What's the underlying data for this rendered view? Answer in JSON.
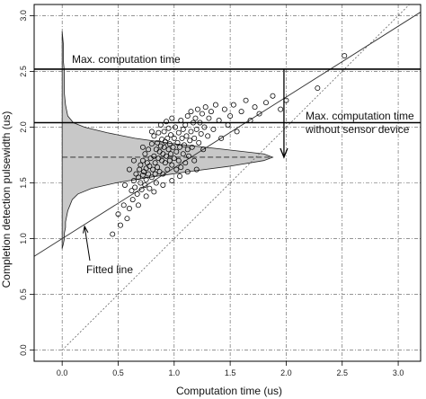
{
  "chart_data": {
    "type": "scatter",
    "xlabel": "Computation time (us)",
    "ylabel": "Completion detection pulsewidth (us)",
    "xlim": [
      -0.25,
      3.2
    ],
    "ylim": [
      -0.1,
      3.1
    ],
    "x_ticks": [
      "0.0",
      "0.5",
      "1.0",
      "1.5",
      "2.0",
      "2.5",
      "3.0"
    ],
    "y_ticks": [
      "0.0",
      "0.5",
      "1.0",
      "1.5",
      "2.0",
      "2.5",
      "3.0"
    ],
    "grid": true,
    "grid_style": "dash-dot",
    "fitted_line": {
      "intercept": 1.0,
      "slope": 0.635
    },
    "identity_line": {
      "intercept": 0.0,
      "slope": 1.0
    },
    "horizontal_lines": [
      {
        "y": 2.52,
        "label": "Max. computation time"
      },
      {
        "y": 2.04,
        "label_line1": "Max. computation time",
        "label_line2": "without sensor device"
      }
    ],
    "mean_line_y": 1.73,
    "arrow": {
      "x": 1.98,
      "y_from": 2.52,
      "y_to": 1.73
    },
    "fitted_line_label": "Fitted line",
    "histogram_density": [
      [
        0.91,
        0.0
      ],
      [
        0.95,
        0.01
      ],
      [
        1.0,
        0.02
      ],
      [
        1.05,
        0.02
      ],
      [
        1.1,
        0.03
      ],
      [
        1.15,
        0.03
      ],
      [
        1.2,
        0.04
      ],
      [
        1.25,
        0.05
      ],
      [
        1.3,
        0.07
      ],
      [
        1.35,
        0.09
      ],
      [
        1.4,
        0.14
      ],
      [
        1.45,
        0.26
      ],
      [
        1.5,
        0.48
      ],
      [
        1.55,
        0.78
      ],
      [
        1.6,
        1.12
      ],
      [
        1.65,
        1.5
      ],
      [
        1.7,
        1.8
      ],
      [
        1.73,
        1.88
      ],
      [
        1.76,
        1.8
      ],
      [
        1.8,
        1.45
      ],
      [
        1.85,
        1.0
      ],
      [
        1.9,
        0.65
      ],
      [
        1.95,
        0.4
      ],
      [
        2.0,
        0.2
      ],
      [
        2.04,
        0.1
      ],
      [
        2.1,
        0.05
      ],
      [
        2.2,
        0.03
      ],
      [
        2.3,
        0.02
      ],
      [
        2.4,
        0.02
      ],
      [
        2.5,
        0.02
      ],
      [
        2.6,
        0.01
      ],
      [
        2.75,
        0.01
      ],
      [
        2.86,
        0.0
      ]
    ],
    "points": [
      [
        0.45,
        1.04
      ],
      [
        0.5,
        1.22
      ],
      [
        0.52,
        1.12
      ],
      [
        0.55,
        1.3
      ],
      [
        0.58,
        1.18
      ],
      [
        0.6,
        1.27
      ],
      [
        0.62,
        1.43
      ],
      [
        0.63,
        1.35
      ],
      [
        0.64,
        1.52
      ],
      [
        0.65,
        1.46
      ],
      [
        0.66,
        1.58
      ],
      [
        0.67,
        1.4
      ],
      [
        0.68,
        1.55
      ],
      [
        0.69,
        1.62
      ],
      [
        0.7,
        1.5
      ],
      [
        0.7,
        1.66
      ],
      [
        0.71,
        1.44
      ],
      [
        0.72,
        1.57
      ],
      [
        0.72,
        1.7
      ],
      [
        0.73,
        1.6
      ],
      [
        0.74,
        1.48
      ],
      [
        0.74,
        1.76
      ],
      [
        0.75,
        1.63
      ],
      [
        0.75,
        1.53
      ],
      [
        0.76,
        1.68
      ],
      [
        0.77,
        1.58
      ],
      [
        0.77,
        1.8
      ],
      [
        0.78,
        1.45
      ],
      [
        0.78,
        1.65
      ],
      [
        0.79,
        1.72
      ],
      [
        0.8,
        1.55
      ],
      [
        0.8,
        1.85
      ],
      [
        0.81,
        1.62
      ],
      [
        0.82,
        1.74
      ],
      [
        0.82,
        1.92
      ],
      [
        0.83,
        1.58
      ],
      [
        0.83,
        1.68
      ],
      [
        0.84,
        1.8
      ],
      [
        0.84,
        1.5
      ],
      [
        0.85,
        1.86
      ],
      [
        0.85,
        1.64
      ],
      [
        0.86,
        1.72
      ],
      [
        0.86,
        1.95
      ],
      [
        0.87,
        1.78
      ],
      [
        0.87,
        1.6
      ],
      [
        0.88,
        1.83
      ],
      [
        0.88,
        2.02
      ],
      [
        0.89,
        1.7
      ],
      [
        0.89,
        1.89
      ],
      [
        0.9,
        1.76
      ],
      [
        0.9,
        1.58
      ],
      [
        0.91,
        1.82
      ],
      [
        0.91,
        1.96
      ],
      [
        0.92,
        1.68
      ],
      [
        0.92,
        1.87
      ],
      [
        0.93,
        2.05
      ],
      [
        0.93,
        1.74
      ],
      [
        0.94,
        1.9
      ],
      [
        0.94,
        1.62
      ],
      [
        0.95,
        1.8
      ],
      [
        0.95,
        1.99
      ],
      [
        0.96,
        1.7
      ],
      [
        0.96,
        1.85
      ],
      [
        0.97,
        1.93
      ],
      [
        0.97,
        1.76
      ],
      [
        0.98,
        2.08
      ],
      [
        0.98,
        1.66
      ],
      [
        0.99,
        1.82
      ],
      [
        1.0,
        1.9
      ],
      [
        1.0,
        1.72
      ],
      [
        1.01,
        2.0
      ],
      [
        1.02,
        1.78
      ],
      [
        1.02,
        1.62
      ],
      [
        1.03,
        1.86
      ],
      [
        1.04,
        1.95
      ],
      [
        1.04,
        1.7
      ],
      [
        1.05,
        1.82
      ],
      [
        1.06,
        2.06
      ],
      [
        1.06,
        1.64
      ],
      [
        1.07,
        1.9
      ],
      [
        1.08,
        1.76
      ],
      [
        1.08,
        1.98
      ],
      [
        1.09,
        1.84
      ],
      [
        1.1,
        1.68
      ],
      [
        1.1,
        2.02
      ],
      [
        1.11,
        1.92
      ],
      [
        1.12,
        1.8
      ],
      [
        1.12,
        2.1
      ],
      [
        1.13,
        1.74
      ],
      [
        1.14,
        1.88
      ],
      [
        1.15,
        1.96
      ],
      [
        1.15,
        2.14
      ],
      [
        1.16,
        1.82
      ],
      [
        1.17,
        2.04
      ],
      [
        1.18,
        1.9
      ],
      [
        1.18,
        1.7
      ],
      [
        1.19,
        2.08
      ],
      [
        1.2,
        1.98
      ],
      [
        1.21,
        2.16
      ],
      [
        1.22,
        1.86
      ],
      [
        1.23,
        2.04
      ],
      [
        1.24,
        1.94
      ],
      [
        1.25,
        2.12
      ],
      [
        1.26,
        1.8
      ],
      [
        1.27,
        2.0
      ],
      [
        1.28,
        2.18
      ],
      [
        1.3,
        1.92
      ],
      [
        1.31,
        2.08
      ],
      [
        1.33,
        2.14
      ],
      [
        1.35,
        1.98
      ],
      [
        1.37,
        2.2
      ],
      [
        1.4,
        2.06
      ],
      [
        1.42,
        1.9
      ],
      [
        1.45,
        2.16
      ],
      [
        1.48,
        2.02
      ],
      [
        1.5,
        2.1
      ],
      [
        1.53,
        2.2
      ],
      [
        1.56,
        1.96
      ],
      [
        1.6,
        2.14
      ],
      [
        1.64,
        2.24
      ],
      [
        1.68,
        2.06
      ],
      [
        1.72,
        2.18
      ],
      [
        1.76,
        2.12
      ],
      [
        1.82,
        2.22
      ],
      [
        1.88,
        2.28
      ],
      [
        1.95,
        2.16
      ],
      [
        2.0,
        2.24
      ],
      [
        0.6,
        1.62
      ],
      [
        0.68,
        1.3
      ],
      [
        0.75,
        1.38
      ],
      [
        0.82,
        1.42
      ],
      [
        0.9,
        1.48
      ],
      [
        0.98,
        1.52
      ],
      [
        1.05,
        1.56
      ],
      [
        1.12,
        1.6
      ],
      [
        1.2,
        1.62
      ],
      [
        0.56,
        1.48
      ],
      [
        0.64,
        1.7
      ],
      [
        0.72,
        1.82
      ],
      [
        0.8,
        1.96
      ],
      [
        2.28,
        2.35
      ],
      [
        2.52,
        2.64
      ]
    ]
  }
}
